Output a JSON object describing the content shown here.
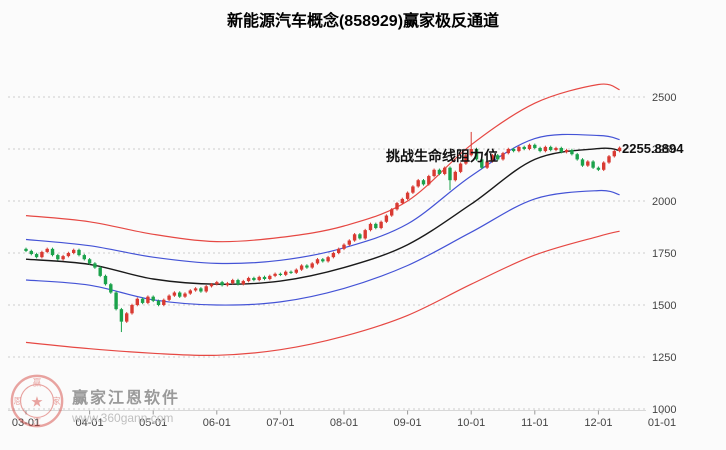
{
  "header": {
    "title": "新能源汽车概念(858929)赢家极反通道"
  },
  "main": {
    "annotation": "挑战生命线阻力位",
    "last_price_label": "2255.8894"
  },
  "watermark": {
    "brand": "赢家江恩软件",
    "url": "www.360gann.com",
    "seal_chars": [
      "赢",
      "家",
      "江",
      "恩"
    ]
  },
  "chart_data": {
    "type": "candlestick",
    "title": "新能源汽车概念(858929)赢家极反通道",
    "annotation": "挑战生命线阻力位",
    "last_price": 2255.8894,
    "x_tick_labels": [
      "03-01",
      "04-01",
      "05-01",
      "06-01",
      "07-01",
      "08-01",
      "09-01",
      "10-01",
      "11-01",
      "12-01",
      "01-01"
    ],
    "candles_per_month": 12,
    "y_ticks": [
      1000,
      1250,
      1500,
      1750,
      2000,
      2250,
      2500
    ],
    "y_range": [
      1000,
      2620
    ],
    "grid": true,
    "legend_position": "none",
    "candlesticks": {
      "first_open": 1770,
      "wick_pad": 6,
      "closes": [
        1760,
        1745,
        1730,
        1755,
        1770,
        1740,
        1720,
        1735,
        1750,
        1765,
        1740,
        1720,
        1700,
        1680,
        1640,
        1600,
        1560,
        1480,
        1420,
        1460,
        1500,
        1530,
        1510,
        1540,
        1520,
        1500,
        1525,
        1545,
        1560,
        1540,
        1555,
        1570,
        1580,
        1565,
        1590,
        1600,
        1610,
        1595,
        1605,
        1620,
        1600,
        1615,
        1630,
        1620,
        1635,
        1625,
        1640,
        1650,
        1645,
        1660,
        1655,
        1670,
        1690,
        1680,
        1700,
        1720,
        1710,
        1730,
        1750,
        1770,
        1790,
        1810,
        1840,
        1820,
        1860,
        1890,
        1870,
        1900,
        1930,
        1960,
        1990,
        2010,
        2040,
        2070,
        2100,
        2080,
        2120,
        2150,
        2130,
        2160,
        2100,
        2140,
        2180,
        2220,
        2250,
        2200,
        2160,
        2190,
        2220,
        2200,
        2230,
        2250,
        2240,
        2260,
        2250,
        2270,
        2255,
        2240,
        2260,
        2245,
        2255,
        2235,
        2245,
        2225,
        2200,
        2170,
        2190,
        2160,
        2150,
        2185,
        2215,
        2240,
        2256
      ],
      "special_wicks": {
        "18": {
          "low": 1370
        },
        "80": {
          "low": 2052
        },
        "84": {
          "high": 2332
        }
      }
    },
    "channel_lines": {
      "anchor_indices": [
        0,
        12,
        24,
        36,
        48,
        60,
        72,
        84,
        96,
        108,
        112
      ],
      "series": [
        {
          "name": "red_upper",
          "color": "#e64843",
          "width": 1.2,
          "values": [
            1930,
            1900,
            1840,
            1805,
            1825,
            1880,
            2000,
            2270,
            2470,
            2560,
            2535
          ]
        },
        {
          "name": "blue_upper",
          "color": "#4453d6",
          "width": 1.2,
          "values": [
            1815,
            1785,
            1730,
            1700,
            1715,
            1775,
            1890,
            2120,
            2300,
            2315,
            2295
          ]
        },
        {
          "name": "life_line",
          "color": "#1a1a1a",
          "width": 1.4,
          "values": [
            1720,
            1695,
            1625,
            1600,
            1615,
            1680,
            1790,
            1985,
            2200,
            2252,
            2243
          ]
        },
        {
          "name": "blue_lower",
          "color": "#4453d6",
          "width": 1.2,
          "values": [
            1620,
            1595,
            1525,
            1500,
            1515,
            1580,
            1690,
            1850,
            2010,
            2050,
            2030
          ]
        },
        {
          "name": "red_lower",
          "color": "#e64843",
          "width": 1.2,
          "values": [
            1320,
            1290,
            1268,
            1258,
            1285,
            1350,
            1450,
            1600,
            1740,
            1830,
            1855
          ]
        }
      ]
    },
    "colors": {
      "up": "#d93a32",
      "down": "#1ba24b",
      "grid": "#cccccc",
      "axis_text": "#444444",
      "axis_line": "#d8d8d8"
    }
  }
}
